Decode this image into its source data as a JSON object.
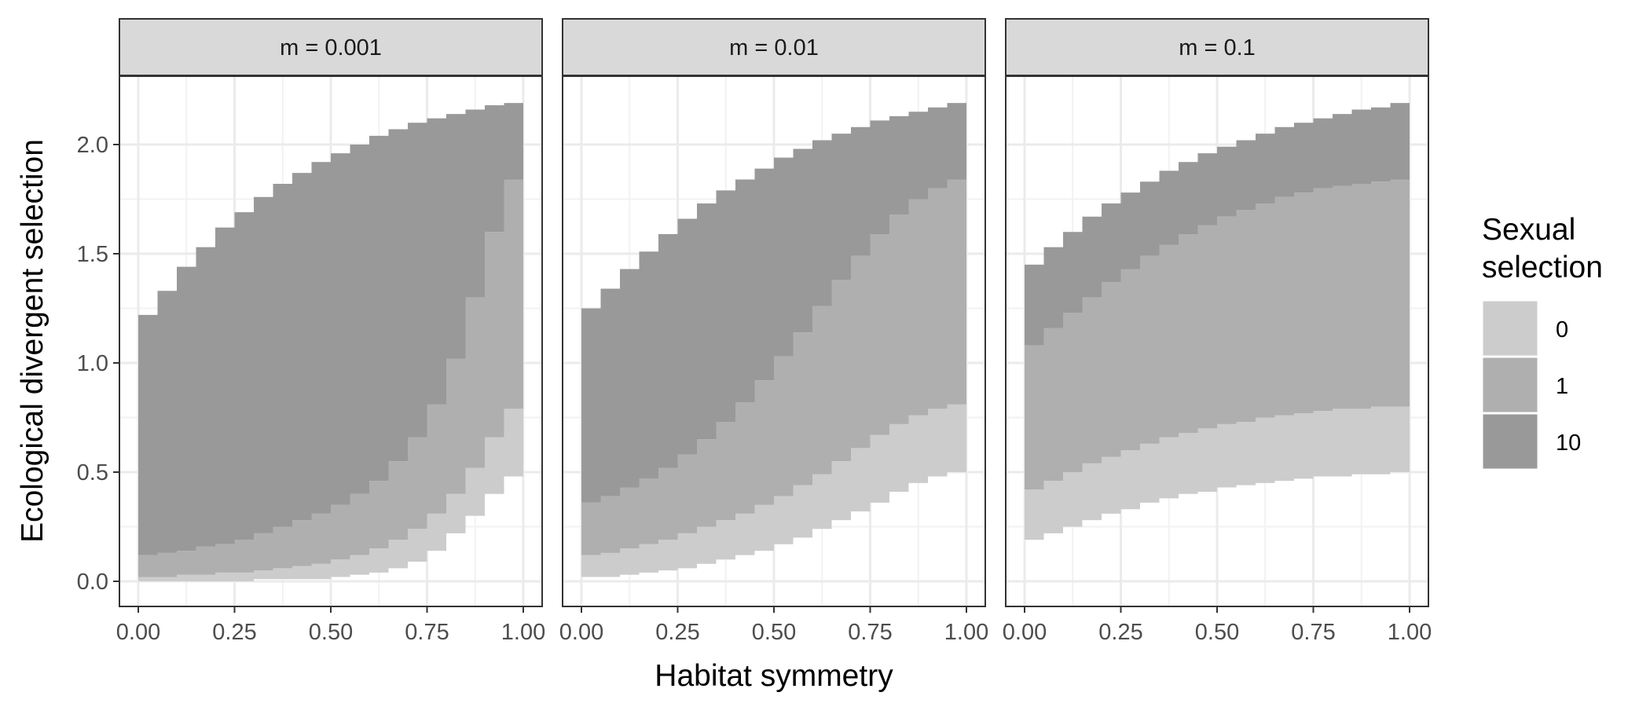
{
  "chart_data": {
    "type": "area",
    "xlabel": "Habitat symmetry",
    "ylabel": "Ecological divergent selection",
    "xlim": [
      0,
      1
    ],
    "ylim": [
      0,
      2.2
    ],
    "x_ticks": [
      "0.00",
      "0.25",
      "0.50",
      "0.75",
      "1.00"
    ],
    "y_ticks": [
      "0.0",
      "0.5",
      "1.0",
      "1.5",
      "2.0"
    ],
    "grid": true,
    "legend": {
      "title_lines": [
        "Sexual",
        "selection"
      ],
      "placement": "right",
      "items": [
        {
          "label": "0",
          "color": "#cccccc"
        },
        {
          "label": "1",
          "color": "#afafaf"
        },
        {
          "label": "10",
          "color": "#999999"
        }
      ]
    },
    "x": [
      0,
      0.05,
      0.1,
      0.15,
      0.2,
      0.25,
      0.3,
      0.35,
      0.4,
      0.45,
      0.5,
      0.55,
      0.6,
      0.65,
      0.7,
      0.75,
      0.8,
      0.85,
      0.9,
      0.95,
      1.0
    ],
    "panels": [
      {
        "strip": "m = 0.001",
        "bands": [
          {
            "name": "0",
            "lower": [
              0.0,
              0.0,
              0.0,
              0.0,
              0.0,
              0.0,
              0.01,
              0.01,
              0.01,
              0.01,
              0.02,
              0.03,
              0.04,
              0.06,
              0.09,
              0.14,
              0.22,
              0.3,
              0.4,
              0.48,
              0.5
            ],
            "upper": [
              0.02,
              0.02,
              0.03,
              0.03,
              0.04,
              0.04,
              0.05,
              0.06,
              0.07,
              0.08,
              0.1,
              0.12,
              0.15,
              0.19,
              0.24,
              0.31,
              0.4,
              0.52,
              0.66,
              0.79,
              0.81
            ]
          },
          {
            "name": "1",
            "lower": [
              0.02,
              0.02,
              0.03,
              0.03,
              0.04,
              0.04,
              0.05,
              0.06,
              0.07,
              0.08,
              0.1,
              0.12,
              0.15,
              0.19,
              0.24,
              0.31,
              0.4,
              0.52,
              0.66,
              0.79,
              0.81
            ],
            "upper": [
              0.12,
              0.13,
              0.14,
              0.16,
              0.17,
              0.19,
              0.22,
              0.25,
              0.28,
              0.31,
              0.35,
              0.4,
              0.46,
              0.55,
              0.66,
              0.81,
              1.02,
              1.3,
              1.6,
              1.84,
              1.86
            ]
          },
          {
            "name": "10",
            "lower": [
              0.12,
              0.13,
              0.14,
              0.16,
              0.17,
              0.19,
              0.22,
              0.25,
              0.28,
              0.31,
              0.35,
              0.4,
              0.46,
              0.55,
              0.66,
              0.81,
              1.02,
              1.3,
              1.6,
              1.84,
              1.86
            ],
            "upper": [
              1.22,
              1.33,
              1.44,
              1.53,
              1.62,
              1.69,
              1.76,
              1.82,
              1.87,
              1.92,
              1.96,
              2.0,
              2.04,
              2.07,
              2.1,
              2.12,
              2.14,
              2.16,
              2.18,
              2.19,
              2.2
            ]
          }
        ]
      },
      {
        "strip": "m = 0.01",
        "bands": [
          {
            "name": "0",
            "lower": [
              0.02,
              0.02,
              0.03,
              0.04,
              0.05,
              0.06,
              0.08,
              0.1,
              0.12,
              0.14,
              0.17,
              0.2,
              0.24,
              0.28,
              0.32,
              0.36,
              0.41,
              0.45,
              0.48,
              0.5,
              0.5
            ],
            "upper": [
              0.12,
              0.13,
              0.15,
              0.17,
              0.19,
              0.22,
              0.25,
              0.28,
              0.31,
              0.35,
              0.39,
              0.44,
              0.49,
              0.55,
              0.61,
              0.67,
              0.72,
              0.76,
              0.79,
              0.81,
              0.81
            ]
          },
          {
            "name": "1",
            "lower": [
              0.12,
              0.13,
              0.15,
              0.17,
              0.19,
              0.22,
              0.25,
              0.28,
              0.31,
              0.35,
              0.39,
              0.44,
              0.49,
              0.55,
              0.61,
              0.67,
              0.72,
              0.76,
              0.79,
              0.81,
              0.81
            ],
            "upper": [
              0.36,
              0.39,
              0.43,
              0.47,
              0.52,
              0.58,
              0.65,
              0.73,
              0.82,
              0.92,
              1.03,
              1.14,
              1.26,
              1.38,
              1.49,
              1.59,
              1.68,
              1.75,
              1.8,
              1.84,
              1.85
            ]
          },
          {
            "name": "10",
            "lower": [
              0.36,
              0.39,
              0.43,
              0.47,
              0.52,
              0.58,
              0.65,
              0.73,
              0.82,
              0.92,
              1.03,
              1.14,
              1.26,
              1.38,
              1.49,
              1.59,
              1.68,
              1.75,
              1.8,
              1.84,
              1.85
            ],
            "upper": [
              1.25,
              1.34,
              1.43,
              1.51,
              1.59,
              1.66,
              1.73,
              1.79,
              1.84,
              1.89,
              1.94,
              1.98,
              2.02,
              2.05,
              2.08,
              2.11,
              2.13,
              2.15,
              2.17,
              2.19,
              2.2
            ]
          }
        ]
      },
      {
        "strip": "m = 0.1",
        "bands": [
          {
            "name": "0",
            "lower": [
              0.19,
              0.22,
              0.25,
              0.28,
              0.31,
              0.33,
              0.36,
              0.38,
              0.4,
              0.41,
              0.43,
              0.44,
              0.45,
              0.46,
              0.47,
              0.48,
              0.48,
              0.49,
              0.49,
              0.5,
              0.5
            ],
            "upper": [
              0.42,
              0.46,
              0.5,
              0.54,
              0.57,
              0.6,
              0.63,
              0.66,
              0.68,
              0.7,
              0.72,
              0.73,
              0.75,
              0.76,
              0.77,
              0.78,
              0.79,
              0.79,
              0.8,
              0.8,
              0.81
            ]
          },
          {
            "name": "1",
            "lower": [
              0.42,
              0.46,
              0.5,
              0.54,
              0.57,
              0.6,
              0.63,
              0.66,
              0.68,
              0.7,
              0.72,
              0.73,
              0.75,
              0.76,
              0.77,
              0.78,
              0.79,
              0.79,
              0.8,
              0.8,
              0.81
            ],
            "upper": [
              1.08,
              1.16,
              1.23,
              1.3,
              1.37,
              1.43,
              1.49,
              1.54,
              1.59,
              1.63,
              1.67,
              1.7,
              1.73,
              1.76,
              1.78,
              1.8,
              1.81,
              1.82,
              1.83,
              1.84,
              1.85
            ]
          },
          {
            "name": "10",
            "lower": [
              1.08,
              1.16,
              1.23,
              1.3,
              1.37,
              1.43,
              1.49,
              1.54,
              1.59,
              1.63,
              1.67,
              1.7,
              1.73,
              1.76,
              1.78,
              1.8,
              1.81,
              1.82,
              1.83,
              1.84,
              1.85
            ],
            "upper": [
              1.45,
              1.53,
              1.6,
              1.67,
              1.73,
              1.78,
              1.83,
              1.88,
              1.92,
              1.96,
              1.99,
              2.02,
              2.05,
              2.08,
              2.1,
              2.12,
              2.14,
              2.16,
              2.17,
              2.19,
              2.2
            ]
          }
        ]
      }
    ]
  }
}
